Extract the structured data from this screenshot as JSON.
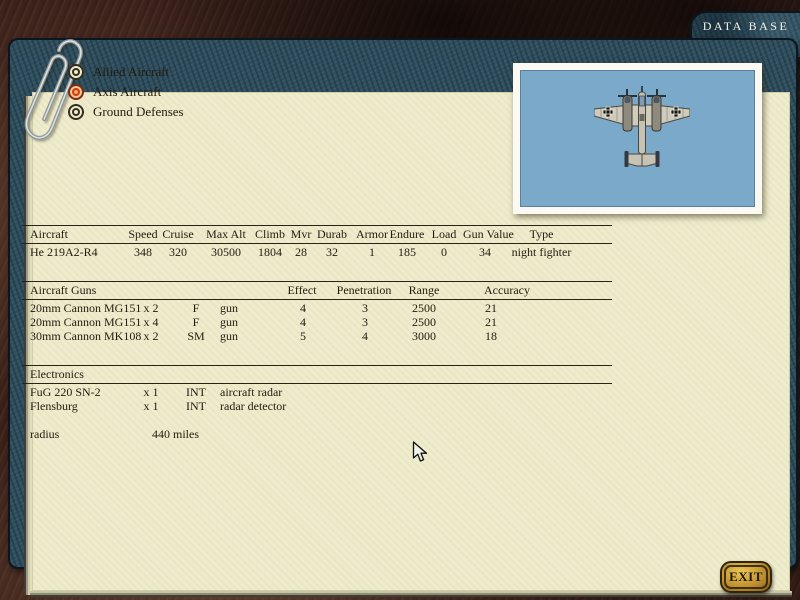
{
  "header": {
    "title": "DATA BASE"
  },
  "categories": [
    {
      "label": "Allied Aircraft",
      "selected": false
    },
    {
      "label": "Axis Aircraft",
      "selected": true
    },
    {
      "label": "Ground Defenses",
      "selected": false
    }
  ],
  "aircraft_table": {
    "headers": [
      "Aircraft",
      "Speed",
      "Cruise",
      "Max Alt",
      "Climb",
      "Mvr",
      "Durab",
      "Armor",
      "Endure",
      "Load",
      "Gun Value",
      "Type"
    ],
    "rows": [
      [
        "He 219A2-R4",
        "348",
        "320",
        "30500",
        "1804",
        "28",
        "32",
        "1",
        "185",
        "0",
        "34",
        "night fighter"
      ]
    ]
  },
  "guns_table": {
    "headers": [
      "Aircraft Guns",
      "Effect",
      "Penetration",
      "Range",
      "Accuracy"
    ],
    "rows": [
      [
        "20mm Cannon MG151",
        "x 2",
        "F",
        "gun",
        "4",
        "3",
        "2500",
        "21"
      ],
      [
        "20mm Cannon MG151",
        "x 4",
        "F",
        "gun",
        "4",
        "3",
        "2500",
        "21"
      ],
      [
        "30mm Cannon MK108",
        "x 2",
        "SM",
        "gun",
        "5",
        "4",
        "3000",
        "18"
      ]
    ]
  },
  "electronics_table": {
    "headers": [
      "Electronics"
    ],
    "rows": [
      [
        "FuG 220 SN-2",
        "x 1",
        "INT",
        "aircraft radar"
      ],
      [
        "Flensburg",
        "x 1",
        "INT",
        "radar detector"
      ]
    ]
  },
  "radius": {
    "label": "radius",
    "value": "440 miles"
  },
  "exit": {
    "label": "EXIT"
  },
  "colors": {
    "paper": "#eeeccc",
    "frame_teal": "#31505f",
    "background_brown": "#3c221b",
    "photo_blue": "#7ba9c9",
    "selected_radio_orange": "#cc3c14",
    "exit_gold": "#c89830"
  }
}
